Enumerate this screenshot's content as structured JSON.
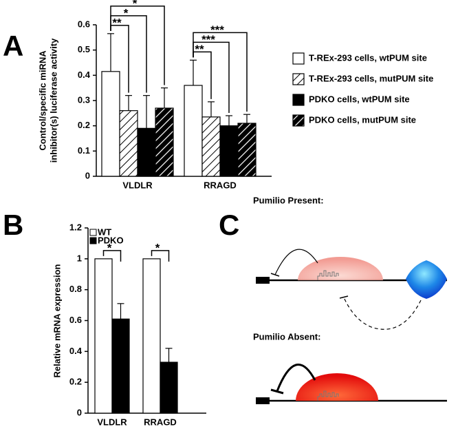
{
  "panel_labels": [
    "A",
    "B",
    "C"
  ],
  "chart_data": [
    {
      "type": "bar",
      "ylabel": [
        "Control/specific miRNA",
        "inhibitor(s) luciferase activity"
      ],
      "categories": [
        "VLDLR",
        "RRAGD"
      ],
      "series": [
        {
          "name": "T-REx-293 cells, wtPUM site",
          "color": "#ffffff",
          "pattern": "solid",
          "values": [
            0.415,
            0.36
          ],
          "errors": [
            0.15,
            0.1
          ]
        },
        {
          "name": "T-REx-293 cells, mutPUM site",
          "color": "#ffffff",
          "pattern": "hatched",
          "values": [
            0.26,
            0.235
          ],
          "errors": [
            0.06,
            0.06
          ]
        },
        {
          "name": "PDKO cells, wtPUM site",
          "color": "#000000",
          "pattern": "solid",
          "values": [
            0.19,
            0.2
          ],
          "errors": [
            0.13,
            0.04
          ]
        },
        {
          "name": "PDKO cells, mutPUM site",
          "color": "#000000",
          "pattern": "hatched",
          "values": [
            0.27,
            0.21
          ],
          "errors": [
            0.08,
            0.035
          ]
        }
      ],
      "ylim": [
        0,
        0.6
      ],
      "yticks": [
        0,
        0.1,
        0.2,
        0.3,
        0.4,
        0.5,
        0.6
      ],
      "legend": "outside right",
      "annotations": [
        {
          "text": "**",
          "category": 0,
          "from": 0,
          "to": 1
        },
        {
          "text": "*",
          "category": 0,
          "from": 0,
          "to": 2
        },
        {
          "text": "*",
          "category": 0,
          "from": 0,
          "to": 3
        },
        {
          "text": "**",
          "category": 1,
          "from": 0,
          "to": 1
        },
        {
          "text": "***",
          "category": 1,
          "from": 0,
          "to": 2
        },
        {
          "text": "***",
          "category": 1,
          "from": 0,
          "to": 3
        }
      ]
    },
    {
      "type": "bar",
      "ylabel": [
        "Relative mRNA expression"
      ],
      "categories": [
        "VLDLR",
        "RRAGD"
      ],
      "series": [
        {
          "name": "WT",
          "color": "#ffffff",
          "pattern": "solid",
          "values": [
            1,
            1
          ]
        },
        {
          "name": "PDKO",
          "color": "#000000",
          "pattern": "solid",
          "values": [
            0.61,
            0.33
          ],
          "errors": [
            0.1,
            0.09
          ]
        }
      ],
      "ylim": [
        0,
        1.2
      ],
      "yticks": [
        0,
        0.2,
        0.4,
        0.6,
        0.8,
        1,
        1.2
      ],
      "legend": "upper left",
      "annotations": [
        {
          "text": "*",
          "category": 0,
          "from": 0,
          "to": 1
        },
        {
          "text": "*",
          "category": 1,
          "from": 0,
          "to": 1
        }
      ]
    }
  ],
  "diagram": {
    "labels": [
      "Pumilio Present:",
      "Pumilio Absent:"
    ]
  }
}
